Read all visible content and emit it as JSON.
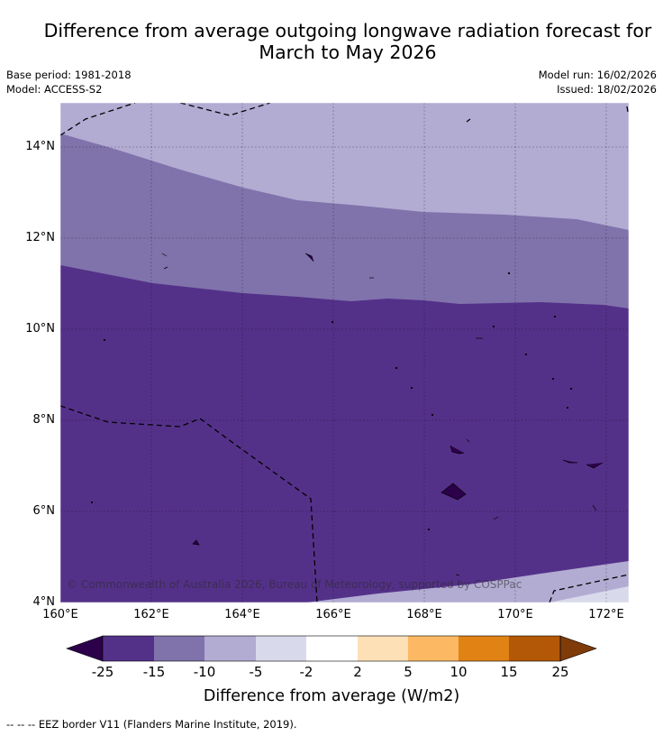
{
  "title": {
    "line1": "Difference from average outgoing longwave radiation forecast for",
    "line2": "March to May 2026"
  },
  "meta": {
    "base_period": "Base period: 1981-2018",
    "model": "Model: ACCESS-S2",
    "model_run": "Model run: 16/02/2026",
    "issued": "Issued: 18/02/2026"
  },
  "map": {
    "credit": "© Commonwealth of Australia 2026, Bureau of Meteorology, supported by COSPPac",
    "lon_range": [
      160,
      172.5
    ],
    "lat_range": [
      4,
      15
    ],
    "lat_ticks": [
      {
        "value": 14,
        "label": "14°N"
      },
      {
        "value": 12,
        "label": "12°N"
      },
      {
        "value": 10,
        "label": "10°N"
      },
      {
        "value": 8,
        "label": "8°N"
      },
      {
        "value": 6,
        "label": "6°N"
      },
      {
        "value": 4,
        "label": "4°N"
      }
    ],
    "lon_ticks": [
      {
        "value": 160,
        "label": "160°E"
      },
      {
        "value": 162,
        "label": "162°E"
      },
      {
        "value": 164,
        "label": "164°E"
      },
      {
        "value": 166,
        "label": "166°E"
      },
      {
        "value": 168,
        "label": "168°E"
      },
      {
        "value": 170,
        "label": "170°E"
      },
      {
        "value": 172,
        "label": "172°E"
      }
    ]
  },
  "colorbar": {
    "title": "Difference from average (W/m2)",
    "tick_labels": [
      "-25",
      "-15",
      "-10",
      "-5",
      "-2",
      "2",
      "5",
      "10",
      "15",
      "25"
    ],
    "colors": [
      "#543189",
      "#8073ac",
      "#b2abd2",
      "#d8daeb",
      "#ffffff",
      "#fee0b6",
      "#fdb863",
      "#e08214",
      "#b35806"
    ],
    "under_color": "#2d004b",
    "over_color": "#7f3b08"
  },
  "footnote": "--  --  -- EEZ border V11 (Flanders Marine Institute, 2019)."
}
